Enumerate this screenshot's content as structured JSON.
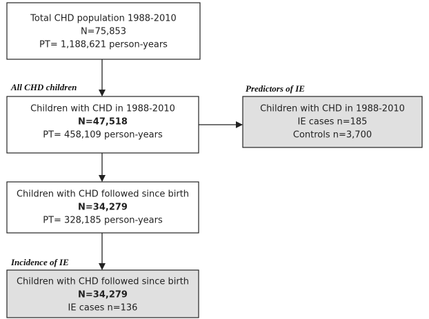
{
  "nodes": [
    {
      "lines": [
        "Total CHD population 1988-2010",
        "N=75,853",
        "PT= 1,188,621 person-years"
      ]
    },
    {
      "lines": [
        "Children with CHD in 1988-2010",
        "N=47,518",
        "PT= 458,109 person-years"
      ]
    },
    {
      "lines": [
        "Children with CHD in 1988-2010",
        "IE cases n=185",
        "Controls n=3,700"
      ]
    },
    {
      "lines": [
        "Children with CHD followed since birth",
        "N=34,279",
        "PT= 328,185 person-years"
      ]
    },
    {
      "lines": [
        "Children with CHD followed since birth",
        "N=34,279",
        "IE cases n=136"
      ]
    }
  ],
  "section_labels": [
    "All CHD children",
    "Predictors of IE",
    "Incidence of IE"
  ]
}
